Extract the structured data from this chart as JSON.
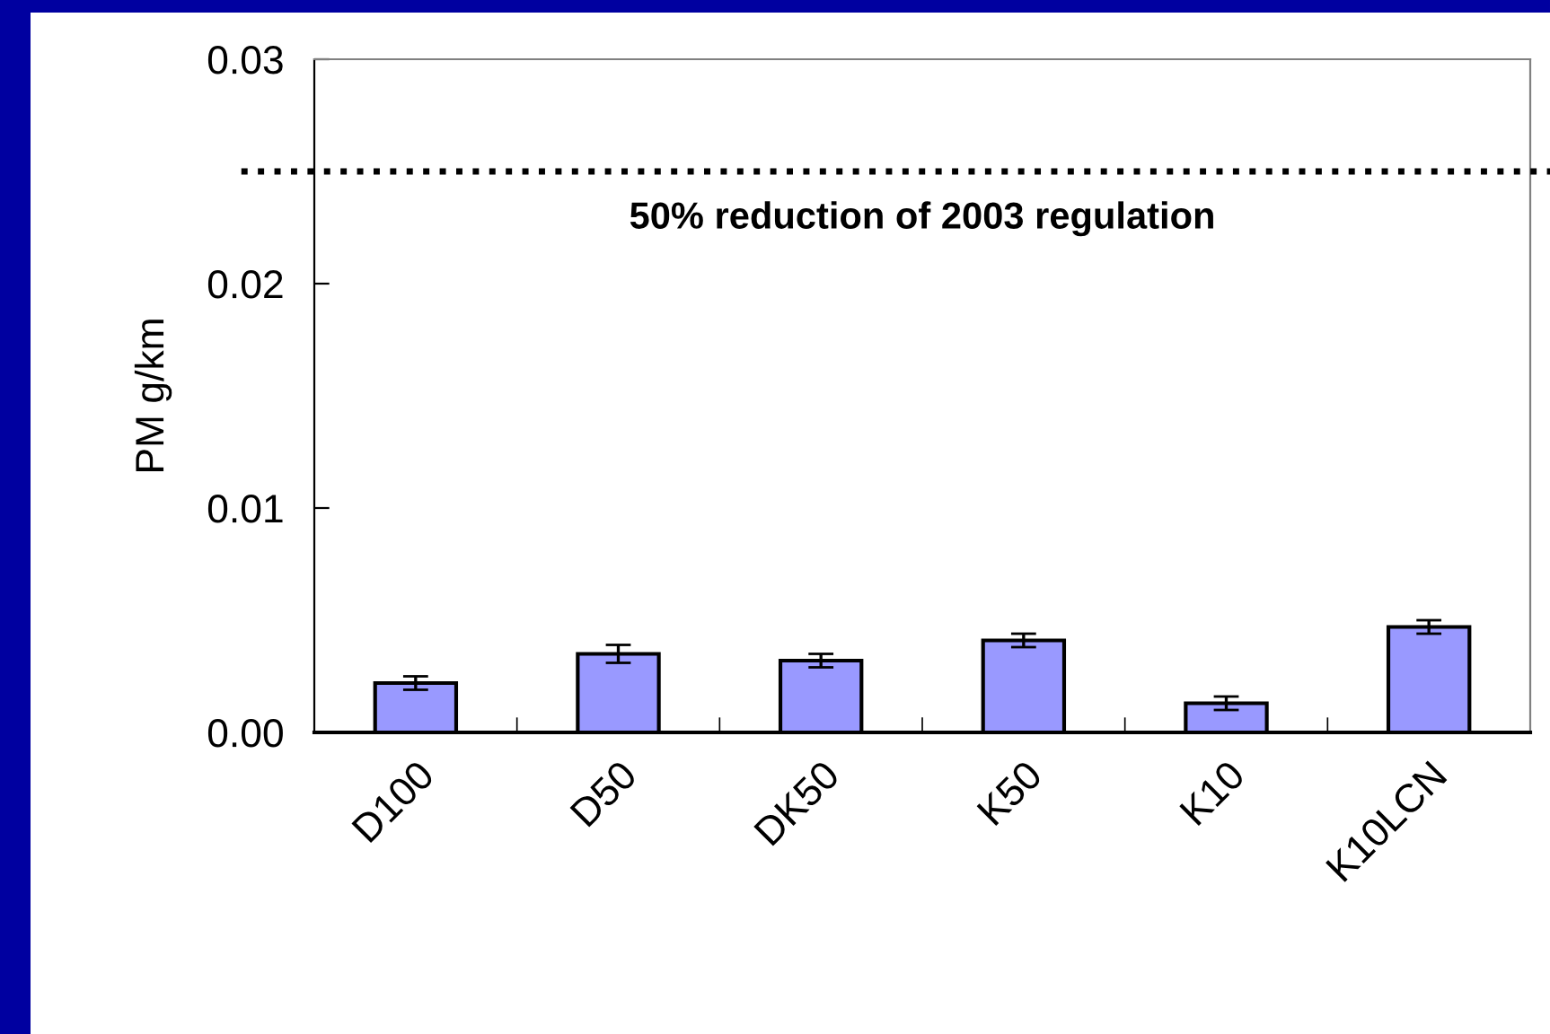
{
  "chart_data": {
    "type": "bar",
    "ylabel": "PM g/km",
    "categories": [
      "D100",
      "D50",
      "DK50",
      "K50",
      "K10",
      "K10LCN"
    ],
    "values": [
      0.0022,
      0.0035,
      0.0032,
      0.0041,
      0.0013,
      0.0047
    ],
    "errors": [
      0.0003,
      0.0004,
      0.0003,
      0.0003,
      0.0003,
      0.0003
    ],
    "color": "#9999ff",
    "ylim": [
      0,
      0.03
    ],
    "yticks": [
      "0.00",
      0.01,
      0.02,
      0.03
    ],
    "ref_lines": [
      {
        "axis": "y",
        "value": 0.025,
        "label": "50% reduction of 2003 regulation",
        "color": "#000000",
        "line_style": "dotted"
      }
    ],
    "grid": false
  }
}
